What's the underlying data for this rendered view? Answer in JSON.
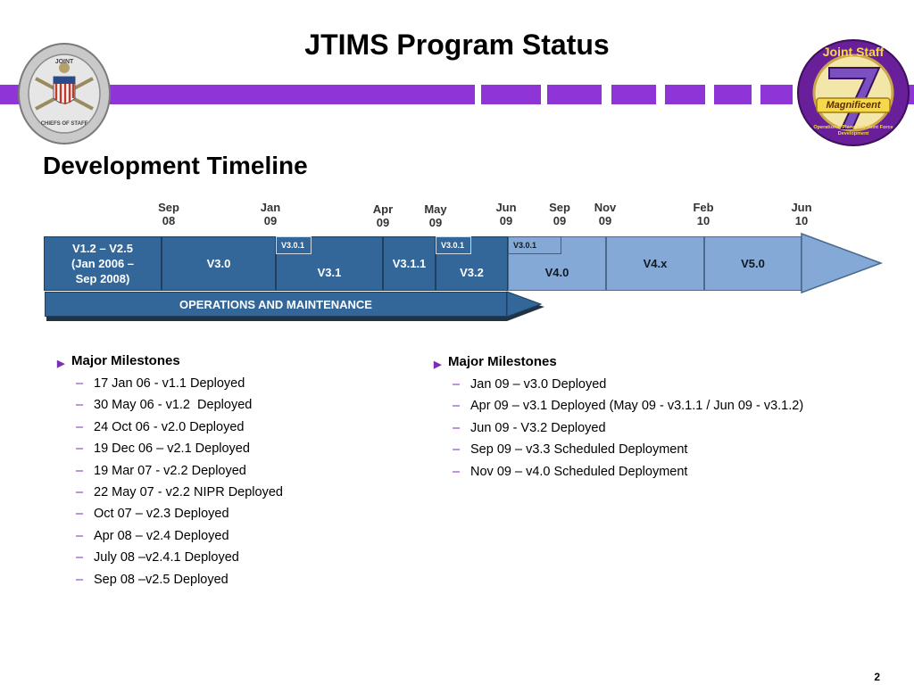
{
  "header": {
    "title": "JTIMS Program Status"
  },
  "logos": {
    "left": {
      "text_top": "JOINT",
      "text_bottom": "CHIEFS OF STAFF"
    },
    "right": {
      "text_top": "Joint Staff",
      "numeral": "7",
      "banner": "Magnificent",
      "text_bottom": "Operational Plans and Joint Force Development"
    }
  },
  "subtitle": "Development Timeline",
  "timeline": {
    "dates": [
      {
        "month": "Sep",
        "year": "08"
      },
      {
        "month": "Jan",
        "year": "09"
      },
      {
        "month": "Apr",
        "year": "09"
      },
      {
        "month": "May",
        "year": "09"
      },
      {
        "month": "Jun",
        "year": "09"
      },
      {
        "month": "Sep",
        "year": "09"
      },
      {
        "month": "Nov",
        "year": "09"
      },
      {
        "month": "Feb",
        "year": "10"
      },
      {
        "month": "Jun",
        "year": "10"
      }
    ],
    "segments": [
      {
        "label": "V1.2 – V2.5\n(Jan 2006 –\nSep 2008)"
      },
      {
        "label": "V3.0"
      },
      {
        "label": "V3.1"
      },
      {
        "label": "V3.1.1"
      },
      {
        "label": "V3.2"
      },
      {
        "label": "V4.0"
      },
      {
        "label": "V4.x"
      },
      {
        "label": "V5.0"
      }
    ],
    "tags": [
      "V3.0.1",
      "V3.0.1",
      "V3.0.1"
    ],
    "ops_label": "OPERATIONS AND MAINTENANCE"
  },
  "milestones_left": {
    "heading": "Major Milestones",
    "items": [
      "17 Jan 06 - v1.1 Deployed",
      "30 May 06 - v1.2  Deployed",
      "24 Oct 06 - v2.0 Deployed",
      "19 Dec 06 – v2.1 Deployed",
      "19 Mar 07 - v2.2 Deployed",
      "22 May 07 - v2.2 NIPR Deployed",
      "Oct 07 – v2.3 Deployed",
      "Apr 08 – v2.4 Deployed",
      "July 08 –v2.4.1 Deployed",
      "Sep 08 –v2.5 Deployed"
    ]
  },
  "milestones_right": {
    "heading": "Major Milestones",
    "items": [
      "Jan 09 – v3.0 Deployed",
      "Apr 09 – v3.1 Deployed (May 09 - v3.1.1 / Jun 09 - v3.1.2)",
      "Jun 09 - V3.2 Deployed",
      "Sep 09 – v3.3 Scheduled Deployment",
      "Nov 09 – v4.0 Scheduled Deployment"
    ]
  },
  "page_number": "2",
  "colors": {
    "band": "#8f34d6",
    "dark_segment": "#336699",
    "light_segment": "#84a9d6",
    "bullet": "#7b2fb5"
  }
}
